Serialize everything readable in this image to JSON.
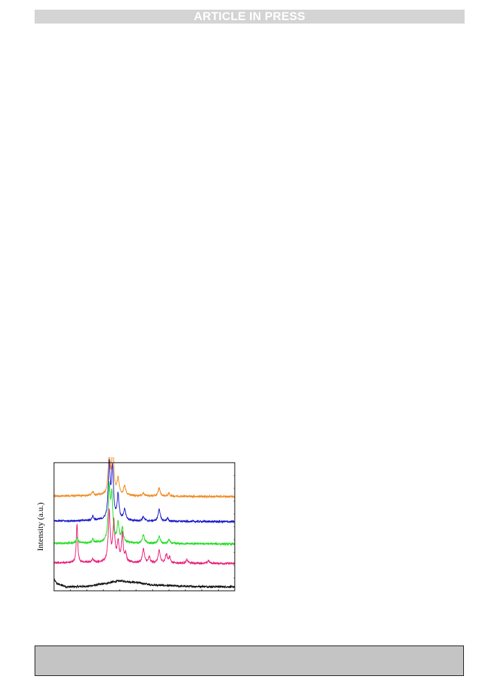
{
  "header": {
    "banner": "ARTICLE IN PRESS"
  },
  "chart_data": {
    "type": "line",
    "title": "",
    "xlabel": "",
    "ylabel": "Intensity (a.u.)",
    "xlim": [
      5,
      60
    ],
    "grid": false,
    "legend": "none",
    "series": [
      {
        "color": "#111111",
        "offset": 0,
        "background": [
          [
            5,
            3.0
          ],
          [
            6,
            1.5
          ],
          [
            9,
            0.4
          ],
          [
            15,
            0.6
          ],
          [
            20,
            1.5
          ],
          [
            25,
            2.6
          ],
          [
            30,
            2.0
          ],
          [
            35,
            1.1
          ],
          [
            45,
            0.6
          ],
          [
            60,
            0.4
          ]
        ],
        "peaks": []
      },
      {
        "color": "#e91e78",
        "offset": 8,
        "background": [
          [
            5,
            1.0
          ],
          [
            20,
            1.2
          ],
          [
            35,
            1.0
          ],
          [
            60,
            0.8
          ]
        ],
        "peaks": [
          [
            12.0,
            14,
            0.25
          ],
          [
            16.8,
            1.2,
            0.3
          ],
          [
            21.8,
            18,
            0.35
          ],
          [
            23.2,
            14,
            0.35
          ],
          [
            24.5,
            7,
            0.35
          ],
          [
            25.8,
            10,
            0.3
          ],
          [
            26.8,
            3,
            0.3
          ],
          [
            32.2,
            5,
            0.35
          ],
          [
            34.0,
            2,
            0.3
          ],
          [
            37.0,
            4.5,
            0.35
          ],
          [
            39.2,
            3,
            0.35
          ],
          [
            40.2,
            2,
            0.3
          ],
          [
            45.5,
            1.2,
            0.3
          ],
          [
            52.0,
            1.0,
            0.3
          ]
        ]
      },
      {
        "color": "#22dd22",
        "offset": 15,
        "background": [
          [
            5,
            1.0
          ],
          [
            20,
            1.3
          ],
          [
            35,
            1.0
          ],
          [
            60,
            0.8
          ]
        ],
        "peaks": [
          [
            12.0,
            2,
            0.3
          ],
          [
            16.8,
            1.2,
            0.3
          ],
          [
            21.8,
            19,
            0.35
          ],
          [
            22.6,
            16,
            0.35
          ],
          [
            24.5,
            7,
            0.35
          ],
          [
            25.8,
            5,
            0.35
          ],
          [
            32.2,
            3,
            0.35
          ],
          [
            37.0,
            2.5,
            0.35
          ],
          [
            40.0,
            1.5,
            0.3
          ]
        ]
      },
      {
        "color": "#1a1acc",
        "offset": 23,
        "background": [
          [
            5,
            1.0
          ],
          [
            20,
            1.3
          ],
          [
            35,
            1.0
          ],
          [
            60,
            0.8
          ]
        ],
        "peaks": [
          [
            16.8,
            1.5,
            0.3
          ],
          [
            21.8,
            20,
            0.35
          ],
          [
            22.8,
            18,
            0.35
          ],
          [
            24.5,
            9,
            0.35
          ],
          [
            26.5,
            4,
            0.35
          ],
          [
            32.2,
            1.5,
            0.35
          ],
          [
            37.0,
            4.5,
            0.35
          ],
          [
            39.5,
            1,
            0.3
          ]
        ]
      },
      {
        "color": "#f08a20",
        "offset": 32,
        "background": [
          [
            5,
            1.0
          ],
          [
            20,
            1.3
          ],
          [
            35,
            1.0
          ],
          [
            60,
            0.8
          ]
        ],
        "peaks": [
          [
            16.8,
            1.5,
            0.3
          ],
          [
            21.8,
            15,
            0.35
          ],
          [
            22.9,
            17,
            0.35
          ],
          [
            24.5,
            6,
            0.35
          ],
          [
            26.5,
            3.5,
            0.35
          ],
          [
            32.2,
            1,
            0.35
          ],
          [
            37.0,
            3,
            0.35
          ],
          [
            40.0,
            1,
            0.3
          ]
        ]
      }
    ]
  }
}
